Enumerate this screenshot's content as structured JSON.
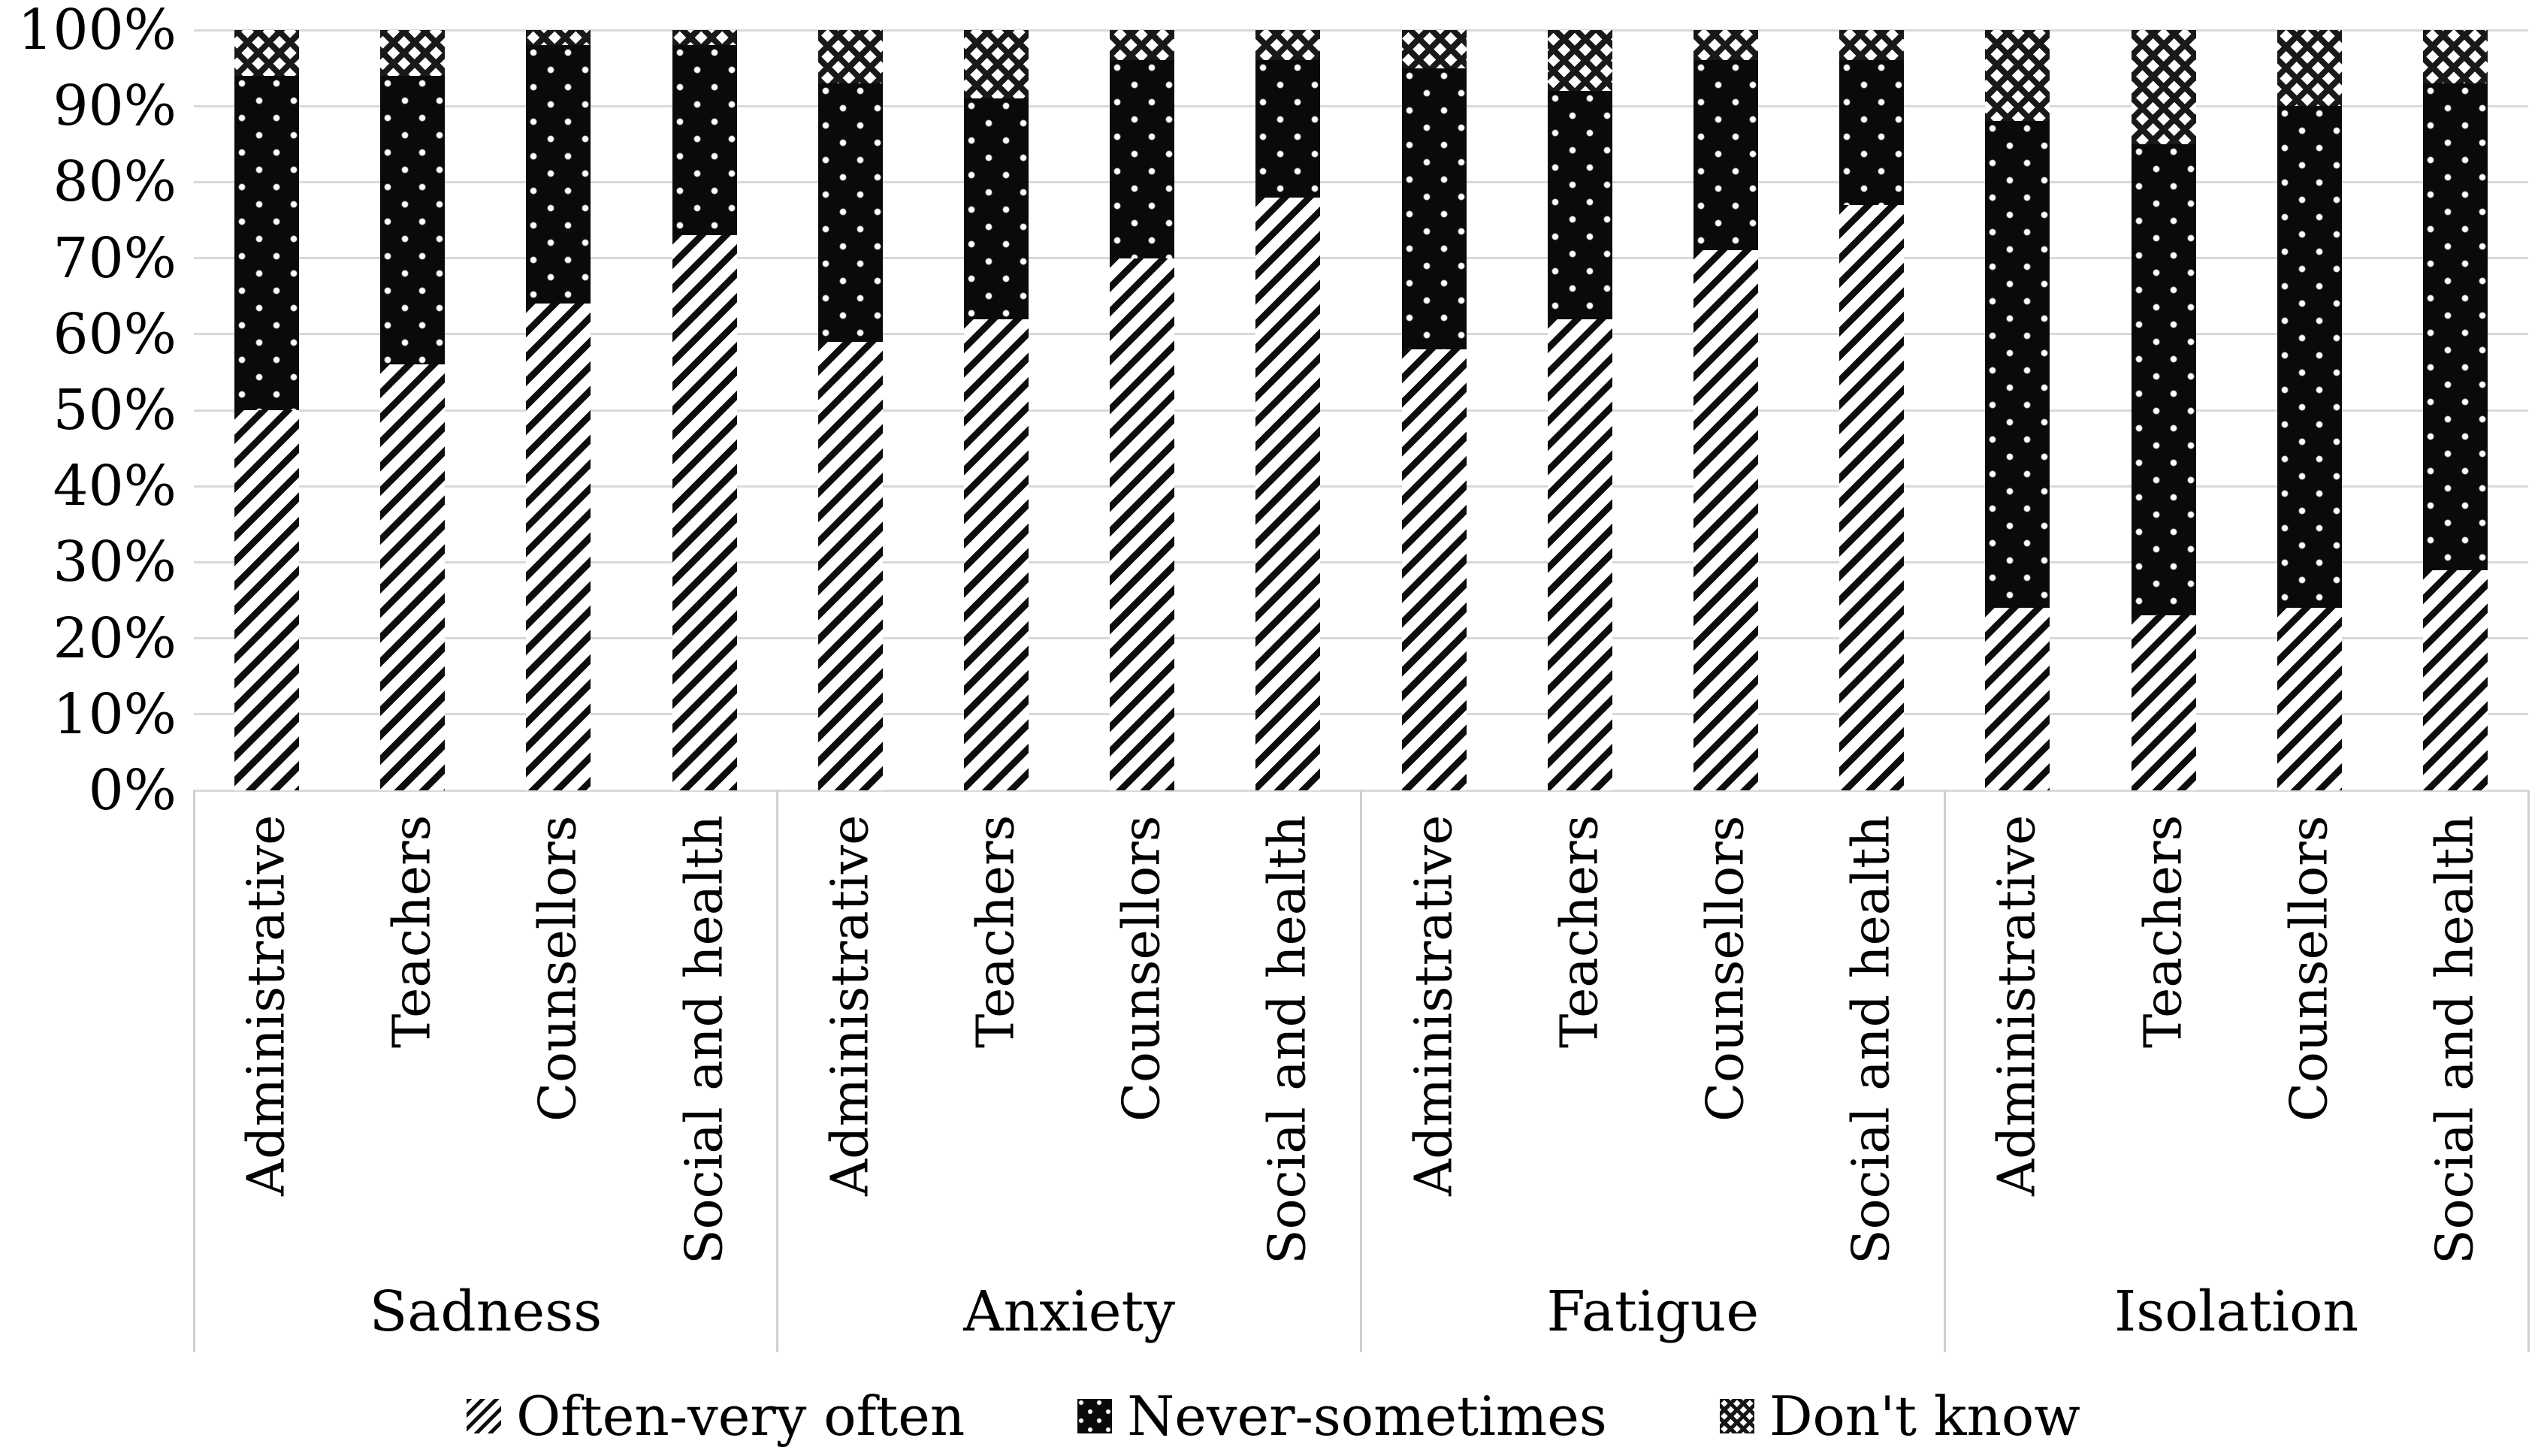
{
  "chart_data": {
    "type": "bar",
    "variant": "100-percent-stacked-column",
    "title": "",
    "units": "percent",
    "values_by": "group-then-category",
    "groups": [
      "Sadness",
      "Anxiety",
      "Fatigue",
      "Isolation"
    ],
    "categories": [
      "Administrative",
      "Teachers",
      "Counsellors",
      "Social and health"
    ],
    "series": [
      {
        "name": "Often-very often",
        "pattern": "diagonal-hatch",
        "colors": {
          "fg": "#0d0d0d",
          "bg": "#ffffff"
        },
        "values": [
          [
            50,
            56,
            64,
            73
          ],
          [
            59,
            62,
            70,
            78
          ],
          [
            58,
            62,
            71,
            77
          ],
          [
            24,
            23,
            24,
            29
          ]
        ]
      },
      {
        "name": "Never-sometimes",
        "pattern": "white-dots-on-black",
        "colors": {
          "fg": "#ffffff",
          "bg": "#0a0a0a"
        },
        "values": [
          [
            44,
            38,
            34,
            25
          ],
          [
            34,
            29,
            26,
            18
          ],
          [
            37,
            30,
            25,
            19
          ],
          [
            64,
            62,
            66,
            64
          ]
        ]
      },
      {
        "name": "Don't know",
        "pattern": "diamond-crosshatch",
        "colors": {
          "fg": "#191919",
          "bg": "#ffffff"
        },
        "values": [
          [
            6,
            6,
            2,
            2
          ],
          [
            7,
            9,
            4,
            4
          ],
          [
            5,
            8,
            4,
            4
          ],
          [
            12,
            15,
            10,
            7
          ]
        ]
      }
    ],
    "y_axis": {
      "min": 0,
      "max": 100,
      "tick_step": 10,
      "ticks": [
        "0%",
        "10%",
        "20%",
        "30%",
        "40%",
        "50%",
        "60%",
        "70%",
        "80%",
        "90%",
        "100%"
      ],
      "gridlines": true,
      "gridline_color": "#d9d9d9"
    },
    "legend": {
      "position": "bottom",
      "items": [
        "Often-very often",
        "Never-sometimes",
        "Don't know"
      ]
    },
    "text_color": "#000000"
  }
}
